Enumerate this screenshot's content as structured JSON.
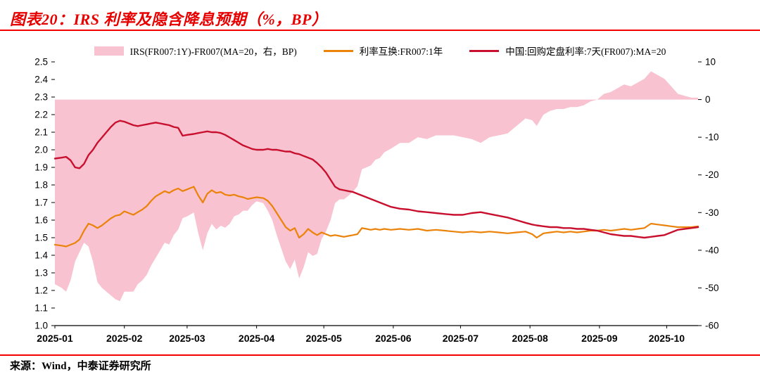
{
  "title": "图表20：IRS 利率及隐含降息预期（%，BP）",
  "source": "来源：Wind，中泰证券研究所",
  "colors": {
    "title_red": "#E60000",
    "rule_red": "#F40000",
    "area_pink": "#F9C2D0",
    "irs_orange": "#EB820A",
    "fr007_crimson": "#C8102E",
    "axis_black": "#000000"
  },
  "legend": [
    {
      "type": "area",
      "label": "IRS(FR007:1Y)-FR007(MA=20，右，BP)"
    },
    {
      "type": "line",
      "label": "利率互换:FR007:1年"
    },
    {
      "type": "line",
      "label": "中国:回购定盘利率:7天(FR007):MA=20"
    }
  ],
  "chart_data": {
    "type": "mixed",
    "title": "IRS 利率及隐含降息预期（%，BP）",
    "x_unit": "days since 2025-01-01",
    "x_range": [
      0,
      287
    ],
    "grid": false,
    "legend_position": "top",
    "left_axis": {
      "min": 1.0,
      "max": 2.5,
      "ticks": [
        2.5,
        2.4,
        2.3,
        2.2,
        2.1,
        2.0,
        1.9,
        1.8,
        1.7,
        1.6,
        1.5,
        1.4,
        1.3,
        1.2,
        1.1,
        1.0
      ]
    },
    "right_axis": {
      "min": -60,
      "max": 10,
      "ticks": [
        10,
        0,
        -10,
        -20,
        -30,
        -40,
        -50,
        -60
      ]
    },
    "x_ticks": [
      {
        "pos": 0,
        "label": "2025-01"
      },
      {
        "pos": 31,
        "label": "2025-02"
      },
      {
        "pos": 59,
        "label": "2025-03"
      },
      {
        "pos": 90,
        "label": "2025-04"
      },
      {
        "pos": 120,
        "label": "2025-05"
      },
      {
        "pos": 151,
        "label": "2025-06"
      },
      {
        "pos": 181,
        "label": "2025-07"
      },
      {
        "pos": 212,
        "label": "2025-08"
      },
      {
        "pos": 243,
        "label": "2025-09"
      },
      {
        "pos": 273,
        "label": "2025-10"
      }
    ],
    "x": [
      0,
      3,
      5,
      7,
      9,
      11,
      13,
      15,
      17,
      19,
      21,
      23,
      25,
      27,
      29,
      31,
      33,
      35,
      37,
      39,
      41,
      43,
      45,
      47,
      49,
      51,
      53,
      55,
      57,
      59,
      62,
      64,
      66,
      68,
      70,
      72,
      74,
      76,
      78,
      80,
      82,
      84,
      86,
      88,
      90,
      93,
      95,
      97,
      99,
      101,
      103,
      105,
      107,
      109,
      111,
      113,
      115,
      117,
      119,
      121,
      123,
      125,
      127,
      129,
      131,
      133,
      135,
      137,
      139,
      141,
      143,
      145,
      147,
      150,
      154,
      158,
      162,
      166,
      170,
      174,
      178,
      182,
      186,
      190,
      194,
      198,
      202,
      206,
      210,
      213,
      215,
      218,
      221,
      224,
      227,
      230,
      233,
      236,
      239,
      242,
      245,
      248,
      251,
      254,
      257,
      260,
      263,
      266,
      269,
      272,
      275,
      278,
      281,
      284,
      287
    ],
    "series": [
      {
        "name": "IRS(FR007:1Y)-FR007(MA=20，右，BP)",
        "type": "area",
        "axis": "right",
        "baseline": 0,
        "color": "#F9C2D0",
        "y": [
          -49,
          -50,
          -51,
          -48,
          -43,
          -40.5,
          -38,
          -39,
          -43,
          -48.5,
          -50,
          -51,
          -52,
          -53,
          -53.5,
          -51,
          -51,
          -51,
          -49,
          -48,
          -46.5,
          -44,
          -42,
          -40,
          -38,
          -38.5,
          -36,
          -34.5,
          -31.5,
          -31,
          -30,
          -35.5,
          -40,
          -35.5,
          -33,
          -34.5,
          -33.5,
          -34,
          -33,
          -31,
          -30.5,
          -29.5,
          -29.5,
          -28,
          -27,
          -27.5,
          -29.5,
          -32,
          -36,
          -39.5,
          -43,
          -45,
          -42.5,
          -47.5,
          -44.5,
          -40.5,
          -41.5,
          -41,
          -37,
          -35,
          -32,
          -27.5,
          -26.5,
          -26.5,
          -25.5,
          -24.5,
          -23,
          -18.5,
          -18,
          -17.5,
          -16,
          -15.5,
          -14,
          -13,
          -11.5,
          -11.5,
          -10,
          -10.5,
          -9.5,
          -9.5,
          -9.5,
          -10,
          -10.5,
          -11.5,
          -10,
          -9.5,
          -9,
          -7,
          -5,
          -5.5,
          -7,
          -4,
          -3,
          -2.5,
          -2.5,
          -2,
          -2,
          -1.5,
          -0.5,
          0,
          1.5,
          2,
          3,
          4,
          3.5,
          4.5,
          5.5,
          7.5,
          6.5,
          5.5,
          3.5,
          1.5,
          1,
          0.5,
          0.5
        ]
      },
      {
        "name": "利率互换:FR007:1年",
        "type": "line",
        "axis": "left",
        "color": "#EB820A",
        "width": 2.2,
        "y": [
          1.46,
          1.455,
          1.45,
          1.46,
          1.47,
          1.49,
          1.54,
          1.58,
          1.57,
          1.555,
          1.57,
          1.59,
          1.61,
          1.625,
          1.63,
          1.65,
          1.64,
          1.63,
          1.645,
          1.66,
          1.68,
          1.71,
          1.735,
          1.75,
          1.765,
          1.755,
          1.77,
          1.78,
          1.765,
          1.775,
          1.79,
          1.74,
          1.7,
          1.75,
          1.77,
          1.755,
          1.76,
          1.745,
          1.74,
          1.745,
          1.735,
          1.73,
          1.72,
          1.725,
          1.73,
          1.725,
          1.71,
          1.68,
          1.64,
          1.6,
          1.56,
          1.54,
          1.555,
          1.5,
          1.52,
          1.55,
          1.53,
          1.515,
          1.53,
          1.52,
          1.51,
          1.515,
          1.51,
          1.505,
          1.51,
          1.515,
          1.52,
          1.555,
          1.55,
          1.545,
          1.55,
          1.545,
          1.55,
          1.545,
          1.55,
          1.545,
          1.55,
          1.54,
          1.545,
          1.54,
          1.535,
          1.53,
          1.535,
          1.53,
          1.535,
          1.53,
          1.525,
          1.53,
          1.535,
          1.52,
          1.5,
          1.525,
          1.53,
          1.535,
          1.53,
          1.535,
          1.53,
          1.535,
          1.54,
          1.54,
          1.545,
          1.54,
          1.545,
          1.55,
          1.545,
          1.55,
          1.555,
          1.58,
          1.575,
          1.57,
          1.565,
          1.56,
          1.56,
          1.56,
          1.565
        ]
      },
      {
        "name": "中国:回购定盘利率:7天(FR007):MA=20",
        "type": "line",
        "axis": "left",
        "color": "#C8102E",
        "width": 2.4,
        "y": [
          1.95,
          1.955,
          1.96,
          1.94,
          1.9,
          1.895,
          1.92,
          1.97,
          2.0,
          2.04,
          2.07,
          2.1,
          2.13,
          2.155,
          2.165,
          2.16,
          2.15,
          2.14,
          2.135,
          2.14,
          2.145,
          2.15,
          2.155,
          2.15,
          2.145,
          2.14,
          2.13,
          2.125,
          2.08,
          2.085,
          2.09,
          2.095,
          2.1,
          2.105,
          2.1,
          2.1,
          2.095,
          2.085,
          2.07,
          2.055,
          2.04,
          2.025,
          2.015,
          2.005,
          2.0,
          2.0,
          2.005,
          2.0,
          2.0,
          1.995,
          1.99,
          1.99,
          1.98,
          1.975,
          1.965,
          1.955,
          1.945,
          1.925,
          1.9,
          1.87,
          1.83,
          1.79,
          1.775,
          1.77,
          1.765,
          1.76,
          1.75,
          1.74,
          1.73,
          1.72,
          1.71,
          1.7,
          1.69,
          1.675,
          1.665,
          1.66,
          1.65,
          1.645,
          1.64,
          1.635,
          1.63,
          1.63,
          1.64,
          1.645,
          1.635,
          1.625,
          1.615,
          1.6,
          1.585,
          1.575,
          1.57,
          1.565,
          1.56,
          1.56,
          1.555,
          1.555,
          1.55,
          1.55,
          1.545,
          1.54,
          1.53,
          1.52,
          1.515,
          1.51,
          1.51,
          1.505,
          1.5,
          1.505,
          1.51,
          1.515,
          1.53,
          1.545,
          1.55,
          1.555,
          1.56
        ]
      }
    ]
  }
}
